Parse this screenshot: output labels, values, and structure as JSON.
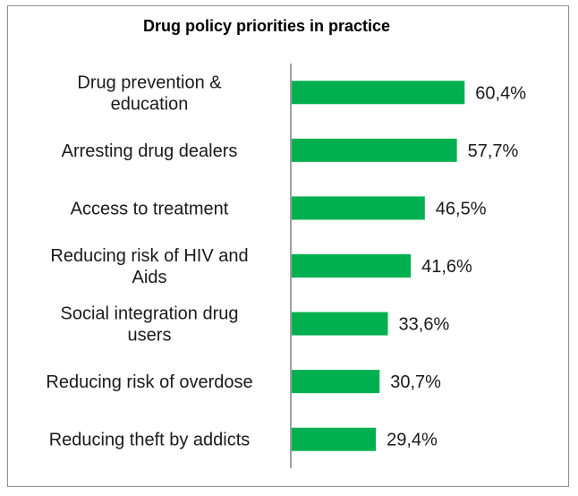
{
  "chart_data": {
    "type": "bar",
    "orientation": "horizontal",
    "title": "Drug policy priorities in practice",
    "categories": [
      [
        "Drug prevention &",
        "education"
      ],
      [
        "Arresting drug dealers"
      ],
      [
        "Access to treatment"
      ],
      [
        "Reducing risk of HIV and",
        "Aids"
      ],
      [
        "Social integration drug",
        "users"
      ],
      [
        "Reducing risk of overdose"
      ],
      [
        "Reducing theft by addicts"
      ]
    ],
    "values": [
      60.4,
      57.7,
      46.5,
      41.6,
      33.6,
      30.7,
      29.4
    ],
    "value_labels": [
      "60,4%",
      "57,7%",
      "46,5%",
      "41,6%",
      "33,6%",
      "30,7%",
      "29,4%"
    ],
    "xlim": [
      0,
      100
    ],
    "bar_color": "#00b050",
    "grid": false,
    "legend": "none"
  }
}
